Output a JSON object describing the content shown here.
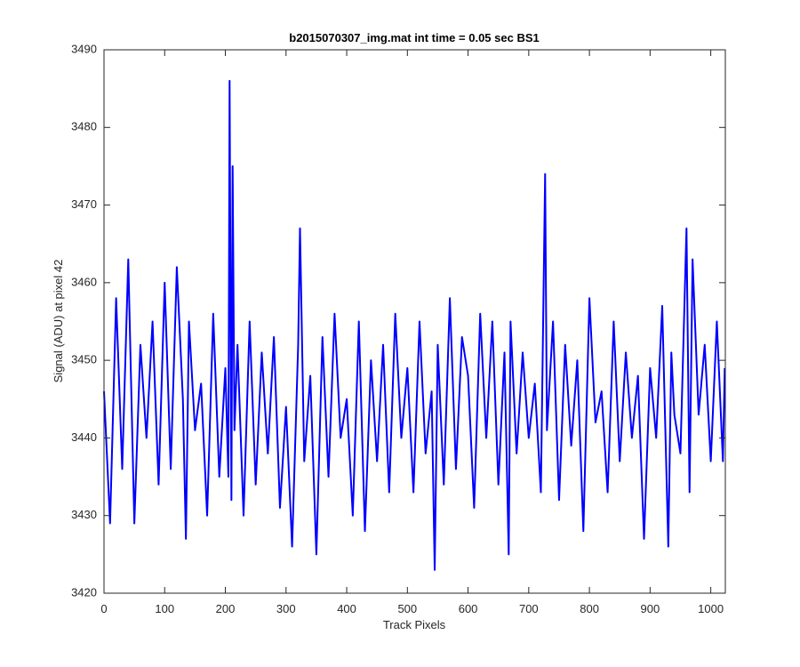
{
  "chart_data": {
    "type": "line",
    "title": "b2015070307_img.mat int time = 0.05 sec   BS1",
    "xlabel": "Track Pixels",
    "ylabel": "Signal (ADU) at pixel 42",
    "xlim": [
      0,
      1024
    ],
    "ylim": [
      3420,
      3490
    ],
    "xticks": [
      0,
      100,
      200,
      300,
      400,
      500,
      600,
      700,
      800,
      900,
      1000
    ],
    "yticks": [
      3420,
      3430,
      3440,
      3450,
      3460,
      3470,
      3480,
      3490
    ],
    "grid": false,
    "legend": "none",
    "series": [
      {
        "color": "#0000ff",
        "x": [
          0,
          10,
          20,
          30,
          40,
          50,
          60,
          70,
          80,
          90,
          100,
          110,
          120,
          130,
          135,
          140,
          150,
          160,
          170,
          180,
          190,
          200,
          205,
          207,
          210,
          212,
          215,
          220,
          230,
          240,
          250,
          260,
          270,
          280,
          290,
          300,
          310,
          320,
          323,
          330,
          340,
          350,
          360,
          370,
          380,
          390,
          400,
          410,
          420,
          430,
          440,
          450,
          460,
          470,
          480,
          490,
          500,
          510,
          520,
          530,
          540,
          545,
          550,
          560,
          570,
          580,
          590,
          600,
          610,
          620,
          630,
          640,
          650,
          660,
          667,
          670,
          680,
          690,
          700,
          710,
          720,
          727,
          730,
          740,
          750,
          760,
          770,
          780,
          790,
          800,
          810,
          820,
          830,
          840,
          850,
          860,
          870,
          880,
          890,
          900,
          910,
          920,
          930,
          935,
          940,
          950,
          960,
          965,
          970,
          980,
          990,
          1000,
          1010,
          1020,
          1023
        ],
        "y": [
          3446,
          3429,
          3458,
          3436,
          3463,
          3429,
          3452,
          3440,
          3455,
          3434,
          3460,
          3436,
          3462,
          3445,
          3427,
          3455,
          3441,
          3447,
          3430,
          3456,
          3435,
          3449,
          3435,
          3486,
          3432,
          3475,
          3441,
          3452,
          3430,
          3455,
          3434,
          3451,
          3438,
          3453,
          3431,
          3444,
          3426,
          3452,
          3467,
          3437,
          3448,
          3425,
          3453,
          3435,
          3456,
          3440,
          3445,
          3430,
          3455,
          3428,
          3450,
          3437,
          3452,
          3433,
          3456,
          3440,
          3449,
          3433,
          3455,
          3438,
          3446,
          3423,
          3452,
          3434,
          3458,
          3436,
          3453,
          3448,
          3431,
          3456,
          3440,
          3455,
          3434,
          3451,
          3425,
          3455,
          3438,
          3451,
          3440,
          3447,
          3433,
          3474,
          3441,
          3455,
          3432,
          3452,
          3439,
          3450,
          3428,
          3458,
          3442,
          3446,
          3433,
          3455,
          3437,
          3451,
          3440,
          3448,
          3427,
          3449,
          3440,
          3457,
          3426,
          3451,
          3443,
          3438,
          3467,
          3433,
          3463,
          3443,
          3452,
          3437,
          3455,
          3437,
          3449
        ]
      }
    ]
  }
}
